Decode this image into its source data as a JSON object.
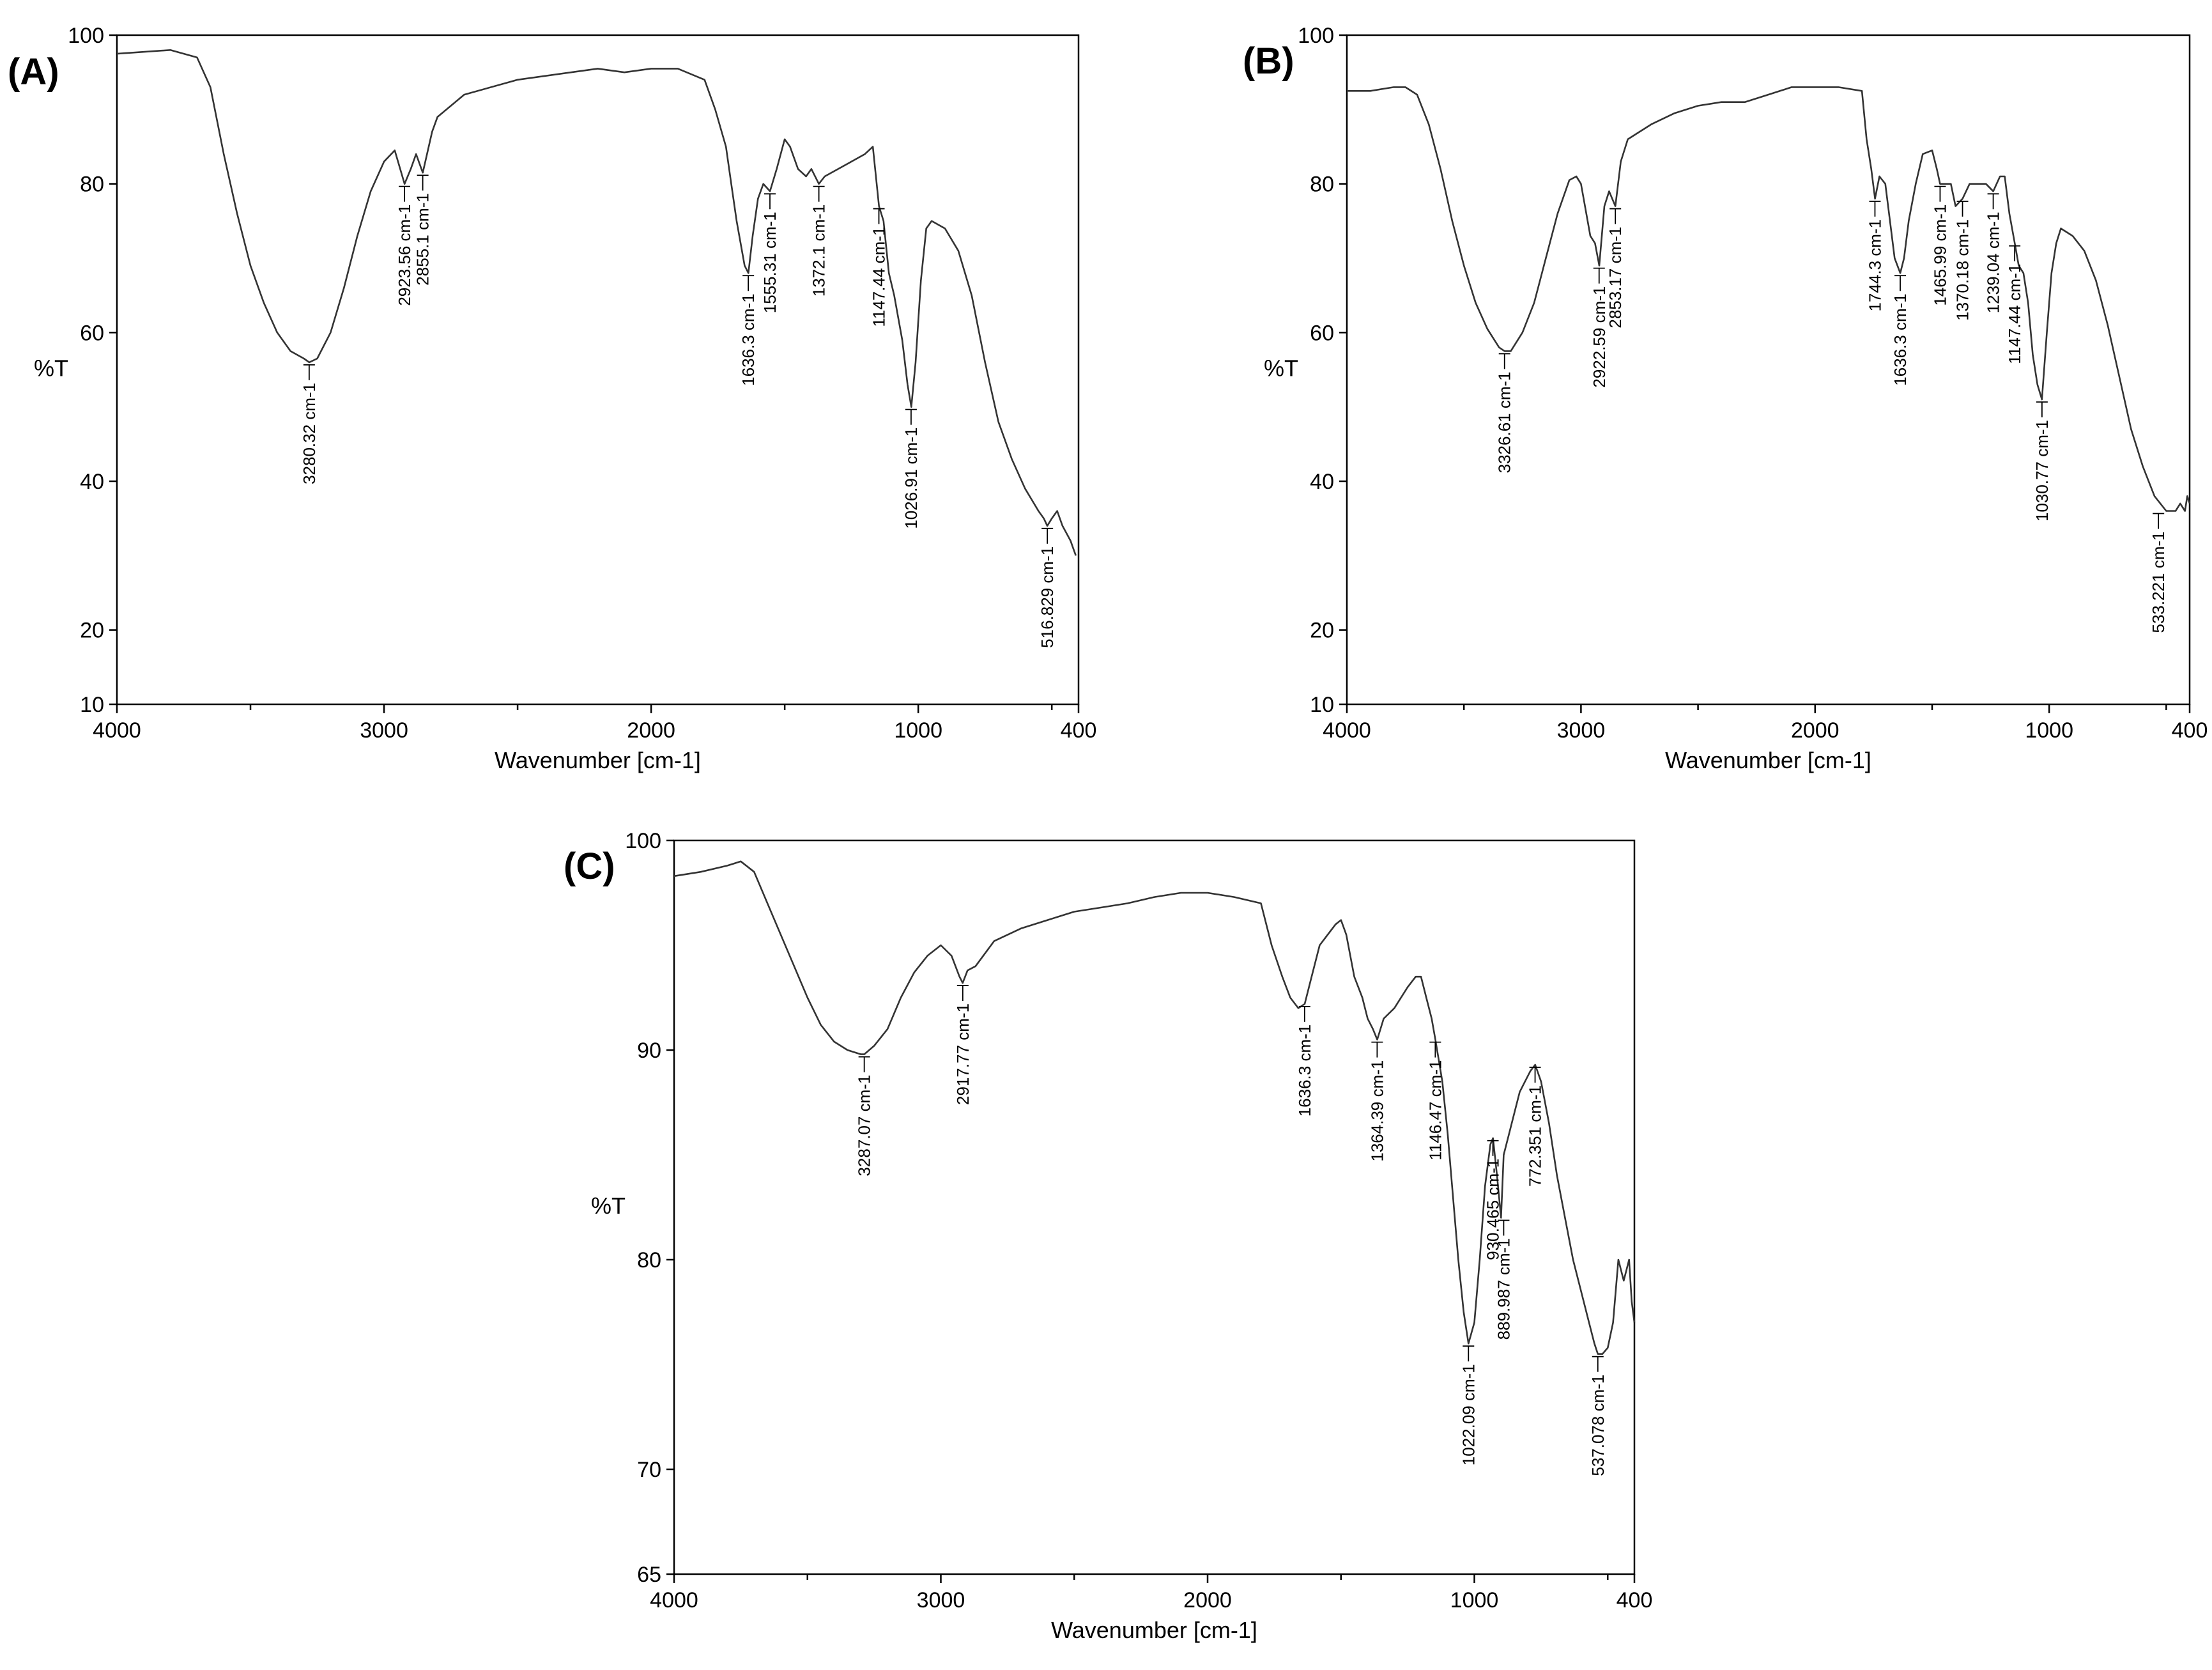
{
  "chart_data": [
    {
      "type": "line",
      "panel_label": "(A)",
      "xlabel": "Wavenumber [cm-1]",
      "ylabel": "%T",
      "xlim": [
        4000,
        400
      ],
      "ylim": [
        10,
        100
      ],
      "xticks": [
        4000,
        3000,
        2000,
        1000,
        400
      ],
      "yticks": [
        100,
        80,
        60,
        40,
        20,
        10
      ],
      "x_minor_ticks": [
        3500,
        2500,
        1500,
        500
      ],
      "series": [
        {
          "x": [
            4000,
            3800,
            3700,
            3650,
            3600,
            3550,
            3500,
            3450,
            3400,
            3350,
            3300,
            3280,
            3250,
            3200,
            3150,
            3100,
            3050,
            3000,
            2960,
            2923,
            2900,
            2880,
            2855,
            2820,
            2800,
            2700,
            2500,
            2300,
            2200,
            2100,
            2000,
            1900,
            1800,
            1760,
            1720,
            1700,
            1680,
            1650,
            1636,
            1620,
            1600,
            1580,
            1555,
            1530,
            1500,
            1480,
            1450,
            1420,
            1400,
            1372,
            1350,
            1300,
            1250,
            1200,
            1170,
            1147,
            1130,
            1110,
            1090,
            1060,
            1040,
            1026,
            1010,
            990,
            970,
            950,
            900,
            850,
            800,
            750,
            700,
            650,
            600,
            550,
            530,
            517,
            500,
            480,
            460,
            445,
            430,
            420,
            410
          ],
          "y": [
            97.5,
            98,
            97,
            93,
            84,
            76,
            69,
            64,
            60,
            57.5,
            56.5,
            56,
            56.5,
            60,
            66,
            73,
            79,
            83,
            84.5,
            80,
            82,
            84,
            81.5,
            87,
            89,
            92,
            94,
            95,
            95.5,
            95,
            95.5,
            95.5,
            94,
            90,
            85,
            80,
            75,
            69,
            68,
            73,
            78,
            80,
            79,
            82,
            86,
            85,
            82,
            81,
            82,
            80,
            81,
            82,
            83,
            84,
            85,
            77,
            75,
            68,
            65,
            59,
            53,
            50,
            56,
            67,
            74,
            75,
            74,
            71,
            65,
            56,
            48,
            43,
            39,
            36,
            35,
            34,
            35,
            36,
            34,
            33,
            32,
            31,
            30
          ]
        }
      ],
      "peak_labels": [
        {
          "x": 3280.32,
          "y": 56,
          "text": "3280.32 cm-1"
        },
        {
          "x": 2923.56,
          "y": 80,
          "text": "2923.56 cm-1"
        },
        {
          "x": 2855.1,
          "y": 81.5,
          "text": "2855.1 cm-1"
        },
        {
          "x": 1636.3,
          "y": 68,
          "text": "1636.3 cm-1"
        },
        {
          "x": 1555.31,
          "y": 79,
          "text": "1555.31 cm-1"
        },
        {
          "x": 1372.1,
          "y": 80,
          "text": "1372.1 cm-1"
        },
        {
          "x": 1147.44,
          "y": 77,
          "text": "1147.44 cm-1"
        },
        {
          "x": 1026.91,
          "y": 50,
          "text": "1026.91 cm-1"
        },
        {
          "x": 516.829,
          "y": 34,
          "text": "516.829 cm-1"
        }
      ]
    },
    {
      "type": "line",
      "panel_label": "(B)",
      "xlabel": "Wavenumber [cm-1]",
      "ylabel": "%T",
      "xlim": [
        4000,
        400
      ],
      "ylim": [
        10,
        100
      ],
      "xticks": [
        4000,
        3000,
        2000,
        1000,
        400
      ],
      "yticks": [
        100,
        80,
        60,
        40,
        20,
        10
      ],
      "x_minor_ticks": [
        3500,
        2500,
        1500,
        500
      ],
      "series": [
        {
          "x": [
            4000,
            3900,
            3800,
            3750,
            3700,
            3650,
            3600,
            3550,
            3500,
            3450,
            3400,
            3350,
            3326,
            3300,
            3250,
            3200,
            3150,
            3100,
            3050,
            3020,
            3000,
            2960,
            2940,
            2922,
            2900,
            2880,
            2853,
            2830,
            2800,
            2700,
            2600,
            2500,
            2400,
            2300,
            2200,
            2150,
            2100,
            2000,
            1900,
            1800,
            1780,
            1760,
            1744,
            1725,
            1700,
            1680,
            1660,
            1636,
            1620,
            1600,
            1570,
            1540,
            1500,
            1480,
            1466,
            1440,
            1420,
            1400,
            1370,
            1340,
            1300,
            1270,
            1239,
            1210,
            1190,
            1170,
            1147,
            1130,
            1110,
            1090,
            1070,
            1050,
            1031,
            1010,
            990,
            970,
            950,
            900,
            850,
            800,
            750,
            700,
            650,
            600,
            550,
            500,
            480,
            460,
            440,
            420,
            410,
            400
          ],
          "y": [
            92.5,
            92.5,
            93,
            93,
            92,
            88,
            82,
            75,
            69,
            64,
            60.5,
            58,
            57.5,
            57.5,
            60,
            64,
            70,
            76,
            80.5,
            81,
            80,
            73,
            72,
            69,
            77,
            79,
            77,
            83,
            86,
            88,
            89.5,
            90.5,
            91,
            91,
            92,
            92.5,
            93,
            93,
            93,
            92.5,
            86,
            82,
            78,
            81,
            80,
            75,
            70,
            68,
            70,
            75,
            80,
            84,
            84.5,
            82,
            80,
            80,
            80,
            77,
            78,
            80,
            80,
            80,
            79,
            81,
            81,
            76,
            72,
            69,
            68,
            64,
            57,
            53,
            51,
            60,
            68,
            72,
            74,
            73,
            71,
            67,
            61,
            54,
            47,
            42,
            38,
            36,
            36,
            36,
            37,
            36,
            38,
            37
          ]
        }
      ],
      "peak_labels": [
        {
          "x": 3326.61,
          "y": 57.5,
          "text": "3326.61 cm-1"
        },
        {
          "x": 2922.59,
          "y": 69,
          "text": "2922.59 cm-1"
        },
        {
          "x": 2853.17,
          "y": 77,
          "text": "2853.17 cm-1"
        },
        {
          "x": 1744.3,
          "y": 78,
          "text": "1744.3 cm-1"
        },
        {
          "x": 1636.3,
          "y": 68,
          "text": "1636.3 cm-1"
        },
        {
          "x": 1465.99,
          "y": 80,
          "text": "1465.99 cm-1"
        },
        {
          "x": 1370.18,
          "y": 78,
          "text": "1370.18 cm-1"
        },
        {
          "x": 1239.04,
          "y": 79,
          "text": "1239.04 cm-1"
        },
        {
          "x": 1147.44,
          "y": 72,
          "text": "1147.44 cm-1"
        },
        {
          "x": 1030.77,
          "y": 51,
          "text": "1030.77 cm-1"
        },
        {
          "x": 533.221,
          "y": 36,
          "text": "533.221 cm-1"
        }
      ]
    },
    {
      "type": "line",
      "panel_label": "(C)",
      "xlabel": "Wavenumber [cm-1]",
      "ylabel": "%T",
      "xlim": [
        4000,
        400
      ],
      "ylim": [
        65,
        100
      ],
      "xticks": [
        4000,
        3000,
        2000,
        1000,
        400
      ],
      "yticks": [
        100,
        90,
        80,
        70,
        65
      ],
      "x_minor_ticks": [
        3500,
        2500,
        1500,
        500
      ],
      "series": [
        {
          "x": [
            4000,
            3900,
            3800,
            3750,
            3700,
            3650,
            3600,
            3550,
            3500,
            3450,
            3400,
            3350,
            3300,
            3287,
            3250,
            3200,
            3150,
            3100,
            3050,
            3000,
            2960,
            2930,
            2918,
            2900,
            2870,
            2800,
            2700,
            2600,
            2500,
            2400,
            2300,
            2200,
            2100,
            2000,
            1900,
            1800,
            1760,
            1720,
            1690,
            1660,
            1636,
            1610,
            1580,
            1550,
            1520,
            1500,
            1480,
            1450,
            1420,
            1400,
            1380,
            1364,
            1340,
            1300,
            1250,
            1220,
            1200,
            1180,
            1160,
            1146,
            1120,
            1100,
            1080,
            1060,
            1040,
            1022,
            1000,
            980,
            960,
            940,
            930,
            915,
            900,
            890,
            870,
            850,
            830,
            810,
            790,
            772,
            750,
            720,
            690,
            660,
            630,
            600,
            570,
            550,
            537,
            520,
            500,
            480,
            460,
            440,
            420,
            410,
            400
          ],
          "y": [
            98.3,
            98.5,
            98.8,
            99,
            98.5,
            97,
            95.5,
            94,
            92.5,
            91.2,
            90.4,
            90,
            89.8,
            89.8,
            90.2,
            91,
            92.5,
            93.7,
            94.5,
            95,
            94.5,
            93.5,
            93.2,
            93.8,
            94,
            95.2,
            95.8,
            96.2,
            96.6,
            96.8,
            97,
            97.3,
            97.5,
            97.5,
            97.3,
            97,
            95,
            93.5,
            92.5,
            92,
            92.2,
            93.5,
            95,
            95.5,
            96,
            96.2,
            95.5,
            93.5,
            92.5,
            91.5,
            91,
            90.5,
            91.5,
            92,
            93,
            93.5,
            93.5,
            92.5,
            91.5,
            90.5,
            88.5,
            86,
            83,
            80,
            77.5,
            76,
            77,
            80,
            83.5,
            85.5,
            85.8,
            84,
            82,
            85,
            86,
            87,
            88,
            88.5,
            89,
            89.3,
            88.5,
            86.5,
            84,
            82,
            80,
            78.5,
            77,
            76,
            75.5,
            75.5,
            75.8,
            77,
            80,
            79,
            80,
            78,
            77
          ]
        }
      ],
      "peak_labels": [
        {
          "x": 3287.07,
          "y": 89.8,
          "text": "3287.07 cm-1"
        },
        {
          "x": 2917.77,
          "y": 93.2,
          "text": "2917.77 cm-1"
        },
        {
          "x": 1636.3,
          "y": 92.2,
          "text": "1636.3 cm-1"
        },
        {
          "x": 1364.39,
          "y": 90.5,
          "text": "1364.39 cm-1"
        },
        {
          "x": 1146.47,
          "y": 90.5,
          "text": "1146.47 cm-1"
        },
        {
          "x": 1022.09,
          "y": 76,
          "text": "1022.09 cm-1"
        },
        {
          "x": 930.465,
          "y": 85.8,
          "text": "930.465 cm-1"
        },
        {
          "x": 889.987,
          "y": 82,
          "text": "889.987 cm-1"
        },
        {
          "x": 772.351,
          "y": 89.3,
          "text": "772.351 cm-1"
        },
        {
          "x": 537.078,
          "y": 75.5,
          "text": "537.078 cm-1"
        }
      ]
    }
  ]
}
